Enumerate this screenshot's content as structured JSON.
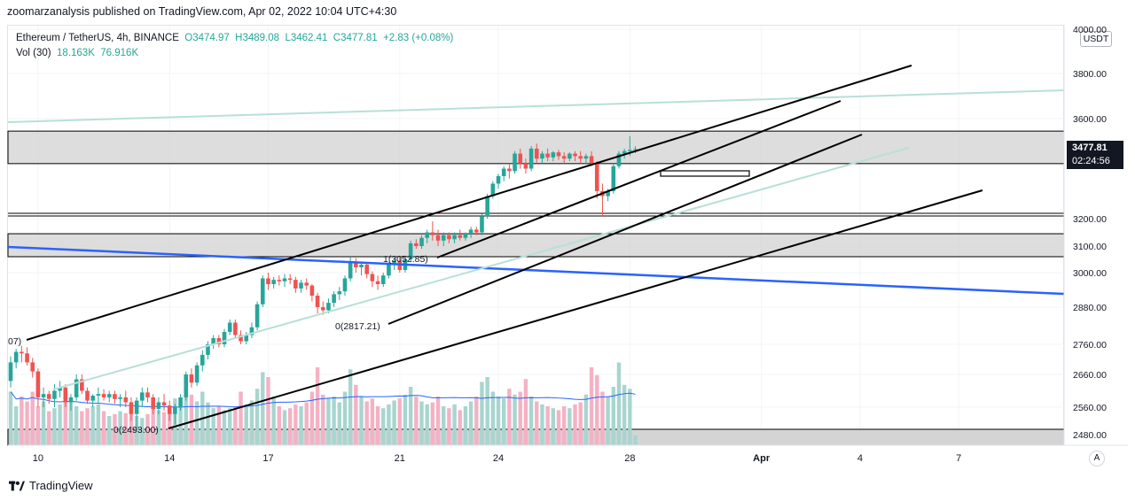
{
  "publish_line": "zoomarzanalysis published on TradingView.com, Apr 02, 2022 10:04 UTC+4:30",
  "legend": {
    "symbol": "Ethereum / TetherUS, 4h, BINANCE",
    "open": "O3474.97",
    "high": "H3489.08",
    "low": "L3462.41",
    "close": "C3477.81",
    "change": "+2.83 (+0.08%)",
    "vol_label": "Vol (30)",
    "vol_value": "18.163K",
    "vol_ma": "76.916K"
  },
  "currency": "USDT",
  "last_price": {
    "price": "3477.81",
    "countdown": "02:24:56"
  },
  "auto_scale": "A",
  "brand": "TradingView",
  "colors": {
    "up": "#26a69a",
    "down": "#ef5350",
    "vol_up": "#a8d5cf",
    "vol_down": "#f5b1c4",
    "trend_blue": "#2962ff",
    "fib_line": "#b7e0d8",
    "zone": "#d1d1d1"
  },
  "chart_data": {
    "type": "candlestick",
    "ylim": [
      2430,
      3990
    ],
    "y_ticks": [
      "4000.00",
      "3800.00",
      "3600.00",
      "3200.00",
      "3100.00",
      "3000.00",
      "2880.00",
      "2760.00",
      "2660.00",
      "2560.00",
      "2480.00"
    ],
    "x_tick_labels": [
      "10",
      "14",
      "17",
      "21",
      "24",
      "28",
      "Apr",
      "4",
      "7"
    ],
    "x_tick_day_index": [
      0,
      4,
      7,
      11,
      14,
      18,
      22,
      25,
      28
    ],
    "annotations": [
      "1(3052.85)",
      "0(2817.21)",
      "0(2493.00)",
      "07)"
    ],
    "candles": [
      [
        2640,
        2720,
        2620,
        2700
      ],
      [
        2700,
        2745,
        2680,
        2735
      ],
      [
        2735,
        2755,
        2700,
        2730
      ],
      [
        2730,
        2750,
        2690,
        2700
      ],
      [
        2700,
        2715,
        2650,
        2670
      ],
      [
        2670,
        2680,
        2560,
        2590
      ],
      [
        2590,
        2620,
        2560,
        2600
      ],
      [
        2600,
        2610,
        2570,
        2585
      ],
      [
        2585,
        2630,
        2560,
        2610
      ],
      [
        2610,
        2640,
        2590,
        2620
      ],
      [
        2620,
        2630,
        2560,
        2575
      ],
      [
        2575,
        2600,
        2550,
        2590
      ],
      [
        2590,
        2660,
        2580,
        2645
      ],
      [
        2645,
        2660,
        2600,
        2610
      ],
      [
        2610,
        2620,
        2570,
        2580
      ],
      [
        2580,
        2600,
        2560,
        2595
      ],
      [
        2595,
        2620,
        2570,
        2600
      ],
      [
        2600,
        2615,
        2580,
        2590
      ],
      [
        2590,
        2610,
        2575,
        2600
      ],
      [
        2600,
        2610,
        2570,
        2585
      ],
      [
        2585,
        2600,
        2560,
        2590
      ],
      [
        2590,
        2610,
        2560,
        2575
      ],
      [
        2575,
        2590,
        2520,
        2540
      ],
      [
        2540,
        2590,
        2500,
        2580
      ],
      [
        2580,
        2620,
        2560,
        2605
      ],
      [
        2605,
        2620,
        2575,
        2590
      ],
      [
        2590,
        2600,
        2540,
        2555
      ],
      [
        2555,
        2590,
        2540,
        2575
      ],
      [
        2575,
        2600,
        2550,
        2565
      ],
      [
        2565,
        2580,
        2520,
        2540
      ],
      [
        2540,
        2570,
        2510,
        2560
      ],
      [
        2560,
        2600,
        2550,
        2590
      ],
      [
        2590,
        2670,
        2580,
        2660
      ],
      [
        2660,
        2680,
        2620,
        2635
      ],
      [
        2635,
        2700,
        2625,
        2690
      ],
      [
        2690,
        2740,
        2670,
        2725
      ],
      [
        2725,
        2770,
        2710,
        2760
      ],
      [
        2760,
        2790,
        2745,
        2780
      ],
      [
        2780,
        2790,
        2750,
        2760
      ],
      [
        2760,
        2810,
        2750,
        2800
      ],
      [
        2800,
        2840,
        2790,
        2830
      ],
      [
        2830,
        2840,
        2780,
        2790
      ],
      [
        2790,
        2805,
        2760,
        2770
      ],
      [
        2770,
        2800,
        2760,
        2790
      ],
      [
        2790,
        2830,
        2780,
        2815
      ],
      [
        2815,
        2900,
        2805,
        2890
      ],
      [
        2890,
        2990,
        2880,
        2980
      ],
      [
        2980,
        3000,
        2940,
        2960
      ],
      [
        2960,
        2985,
        2945,
        2975
      ],
      [
        2975,
        2990,
        2955,
        2970
      ],
      [
        2970,
        2995,
        2950,
        2980
      ],
      [
        2980,
        2995,
        2960,
        2975
      ],
      [
        2975,
        2985,
        2930,
        2945
      ],
      [
        2945,
        2975,
        2930,
        2965
      ],
      [
        2965,
        2980,
        2940,
        2955
      ],
      [
        2955,
        2960,
        2900,
        2920
      ],
      [
        2920,
        2930,
        2860,
        2880
      ],
      [
        2880,
        2900,
        2855,
        2870
      ],
      [
        2870,
        2910,
        2860,
        2895
      ],
      [
        2895,
        2935,
        2880,
        2925
      ],
      [
        2925,
        2950,
        2905,
        2935
      ],
      [
        2935,
        2990,
        2920,
        2980
      ],
      [
        2980,
        3060,
        2970,
        3040
      ],
      [
        3040,
        3055,
        3000,
        3020
      ],
      [
        3020,
        3040,
        2990,
        3030
      ],
      [
        3030,
        3035,
        2980,
        2995
      ],
      [
        2995,
        3005,
        2950,
        2970
      ],
      [
        2970,
        2990,
        2940,
        2960
      ],
      [
        2960,
        3000,
        2950,
        2990
      ],
      [
        2990,
        3040,
        2980,
        3030
      ],
      [
        3030,
        3055,
        3010,
        3045
      ],
      [
        3045,
        3060,
        3000,
        3010
      ],
      [
        3010,
        3060,
        3000,
        3050
      ],
      [
        3050,
        3120,
        3040,
        3110
      ],
      [
        3110,
        3125,
        3090,
        3100
      ],
      [
        3100,
        3140,
        3090,
        3130
      ],
      [
        3130,
        3160,
        3110,
        3150
      ],
      [
        3150,
        3190,
        3120,
        3140
      ],
      [
        3140,
        3160,
        3100,
        3120
      ],
      [
        3120,
        3150,
        3100,
        3140
      ],
      [
        3140,
        3150,
        3110,
        3125
      ],
      [
        3125,
        3150,
        3110,
        3140
      ],
      [
        3140,
        3160,
        3120,
        3130
      ],
      [
        3130,
        3150,
        3120,
        3145
      ],
      [
        3145,
        3170,
        3130,
        3160
      ],
      [
        3160,
        3170,
        3140,
        3150
      ],
      [
        3150,
        3220,
        3140,
        3210
      ],
      [
        3210,
        3300,
        3200,
        3290
      ],
      [
        3290,
        3350,
        3280,
        3340
      ],
      [
        3340,
        3380,
        3320,
        3370
      ],
      [
        3370,
        3410,
        3350,
        3400
      ],
      [
        3400,
        3420,
        3360,
        3390
      ],
      [
        3390,
        3470,
        3380,
        3460
      ],
      [
        3460,
        3480,
        3400,
        3420
      ],
      [
        3420,
        3440,
        3380,
        3400
      ],
      [
        3400,
        3490,
        3390,
        3480
      ],
      [
        3480,
        3500,
        3420,
        3440
      ],
      [
        3440,
        3470,
        3420,
        3460
      ],
      [
        3460,
        3480,
        3430,
        3445
      ],
      [
        3445,
        3470,
        3430,
        3465
      ],
      [
        3465,
        3475,
        3435,
        3450
      ],
      [
        3450,
        3465,
        3420,
        3440
      ],
      [
        3440,
        3465,
        3430,
        3460
      ],
      [
        3460,
        3470,
        3430,
        3450
      ],
      [
        3450,
        3470,
        3420,
        3440
      ],
      [
        3440,
        3460,
        3420,
        3450
      ],
      [
        3450,
        3470,
        3410,
        3420
      ],
      [
        3420,
        3430,
        3280,
        3310
      ],
      [
        3310,
        3340,
        3210,
        3290
      ],
      [
        3290,
        3320,
        3270,
        3310
      ],
      [
        3310,
        3420,
        3300,
        3410
      ],
      [
        3410,
        3470,
        3400,
        3460
      ],
      [
        3460,
        3480,
        3440,
        3470
      ],
      [
        3470,
        3530,
        3450,
        3475
      ],
      [
        3475,
        3489,
        3462,
        3478
      ]
    ],
    "volume_ratio": [
      0.55,
      0.4,
      0.5,
      0.45,
      0.55,
      0.4,
      0.45,
      0.35,
      0.38,
      0.42,
      0.5,
      0.45,
      0.4,
      0.35,
      0.38,
      0.4,
      0.42,
      0.35,
      0.3,
      0.32,
      0.35,
      0.33,
      0.38,
      0.3,
      0.28,
      0.32,
      0.45,
      0.36,
      0.34,
      0.4,
      0.48,
      0.4,
      0.62,
      0.52,
      0.45,
      0.55,
      0.44,
      0.38,
      0.4,
      0.36,
      0.38,
      0.4,
      0.55,
      0.42,
      0.46,
      0.58,
      0.75,
      0.7,
      0.5,
      0.4,
      0.36,
      0.38,
      0.42,
      0.4,
      0.44,
      0.55,
      0.8,
      0.52,
      0.48,
      0.5,
      0.44,
      0.55,
      0.78,
      0.62,
      0.5,
      0.45,
      0.48,
      0.4,
      0.38,
      0.42,
      0.46,
      0.48,
      0.52,
      0.6,
      0.5,
      0.45,
      0.42,
      0.44,
      0.5,
      0.4,
      0.38,
      0.42,
      0.36,
      0.4,
      0.45,
      0.5,
      0.65,
      0.7,
      0.55,
      0.5,
      0.48,
      0.58,
      0.52,
      0.55,
      0.68,
      0.5,
      0.45,
      0.42,
      0.4,
      0.38,
      0.36,
      0.4,
      0.38,
      0.42,
      0.44,
      0.52,
      0.8,
      0.72,
      0.55,
      0.5,
      0.6,
      0.85,
      0.62,
      0.58,
      0.1
    ]
  }
}
